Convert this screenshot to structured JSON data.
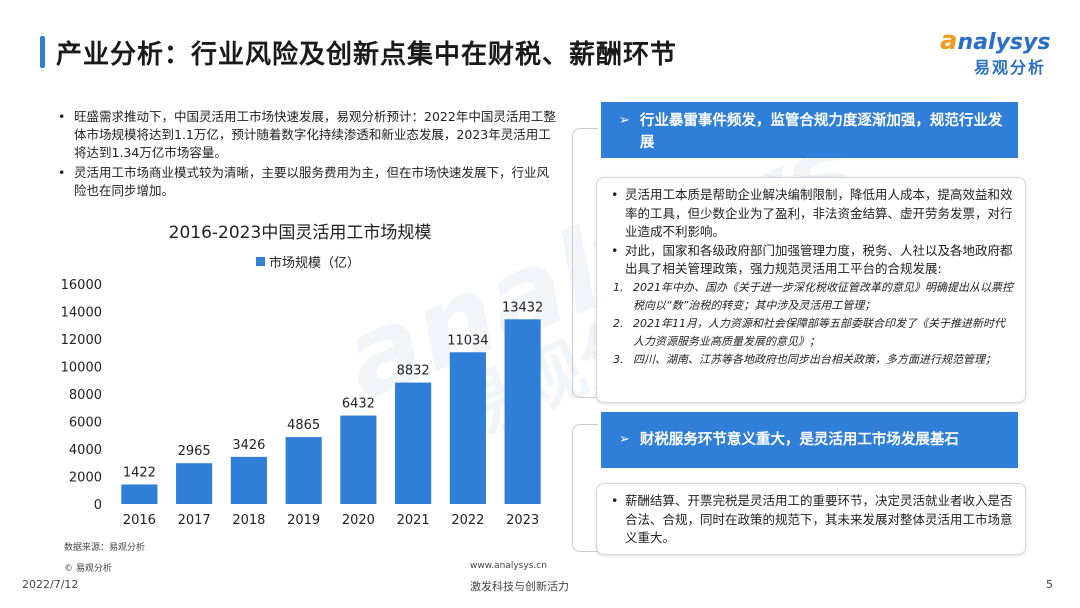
{
  "header": {
    "title": "产业分析：行业风险及创新点集中在财税、薪酬环节",
    "logo_en_prefix": "a",
    "logo_en_rest": "nalysys",
    "logo_cn": "易观分析"
  },
  "left_bullets": [
    "旺盛需求推动下，中国灵活用工市场快速发展，易观分析预计：2022年中国灵活用工整体市场规模将达到1.1万亿，预计随着数字化持续渗透和新业态发展，2023年灵活用工将达到1.34万亿市场容量。",
    "灵活用工市场商业模式较为清晰，主要以服务费用为主，但在市场快速发展下，行业风险也在同步增加。"
  ],
  "chart_data": {
    "type": "bar",
    "title": "2016-2023中国灵活用工市场规模",
    "categories": [
      "2016",
      "2017",
      "2018",
      "2019",
      "2020",
      "2021",
      "2022",
      "2023"
    ],
    "series": [
      {
        "name": "市场规模（亿）",
        "values": [
          1422,
          2965,
          3426,
          4865,
          6432,
          8832,
          11034,
          13432
        ]
      }
    ],
    "yticks": [
      "0",
      "2000",
      "4000",
      "6000",
      "8000",
      "10000",
      "12000",
      "14000",
      "16000"
    ],
    "ylim": [
      0,
      16000
    ],
    "legend_position": "top",
    "grid": false,
    "bar_color": "#2f7ed8"
  },
  "right": {
    "box1_arrow": "➢",
    "box1_title": "行业暴雷事件频发，监管合规力度逐渐加强，规范行业发展",
    "box1_bullets": [
      "灵活用工本质是帮助企业解决编制限制，降低用人成本，提高效益和效率的工具，但少数企业为了盈利，非法资金结算、虚开劳务发票，对行业造成不利影响。",
      "对此，国家和各级政府部门加强管理力度，税务、人社以及各地政府都出具了相关管理政策，强力规范灵活用工平台的合规发展:"
    ],
    "box1_numbered": [
      {
        "num": "1.",
        "text": "2021年中办、国办《关于进一步深化税收征管改革的意见》明确提出从以票控税向以“数”治税的转变；其中涉及灵活用工管理；"
      },
      {
        "num": "2.",
        "text": "2021年11月，人力资源和社会保障部等五部委联合印发了《关于推进新时代人力资源服务业高质量发展的意见》；"
      },
      {
        "num": "3.",
        "text": "四川、湖南、江苏等各地政府也同步出台相关政策，多方面进行规范管理；"
      }
    ],
    "box2_arrow": "➢",
    "box2_title": "财税服务环节意义重大，是灵活用工市场发展基石",
    "box2_bullets": [
      "薪酬结算、开票完税是灵活用工的重要环节，决定灵活就业者收入是否合法、合规，同时在政策的规范下，其未来发展对整体灵活用工市场意义重大。"
    ]
  },
  "footer": {
    "source": "数据来源：易观分析",
    "copyright": "© 易观分析",
    "website": "www.analysys.cn",
    "date": "2022/7/12",
    "slogan": "激发科技与创新活力",
    "page": "5"
  },
  "watermark": {
    "en": "analysys",
    "cn": "易观分析"
  },
  "colors": {
    "accent": "#2f7ed8",
    "logo_orange": "#f29c1f"
  }
}
